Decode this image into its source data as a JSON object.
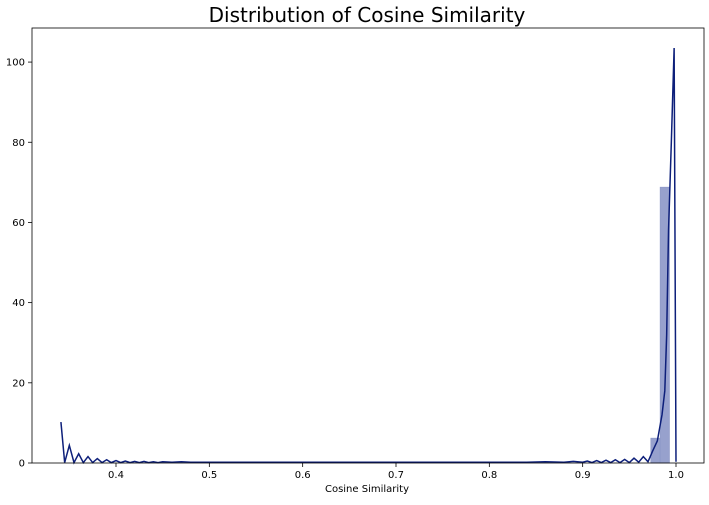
{
  "chart_data": {
    "type": "histogram",
    "title": "Distribution of Cosine Similarity",
    "xlabel": "Cosine Similarity",
    "ylabel": "",
    "xlim": [
      0.31,
      1.03
    ],
    "ylim": [
      0,
      108.5
    ],
    "grid": false,
    "legend": "none",
    "colors": {
      "bar_fill": "#97a1cd",
      "bar_stroke": "#8a95c6",
      "kde_line": "#0d1f7a",
      "axis": "#000000",
      "title": "#000000"
    },
    "x_ticks": [
      0.4,
      0.5,
      0.6,
      0.7,
      0.8,
      0.9,
      1.0
    ],
    "x_tick_labels": [
      "0.4",
      "0.5",
      "0.6",
      "0.7",
      "0.8",
      "0.9",
      "1.0"
    ],
    "y_ticks": [
      0,
      20,
      40,
      60,
      80,
      100
    ],
    "y_tick_labels": [
      "0",
      "20",
      "40",
      "60",
      "80",
      "100"
    ],
    "bins": [
      {
        "x0": 0.973,
        "x1": 0.983,
        "value": 6.2
      },
      {
        "x0": 0.983,
        "x1": 0.993,
        "value": 68.8
      }
    ],
    "kde_line": {
      "x": [
        0.341,
        0.345,
        0.35,
        0.355,
        0.36,
        0.365,
        0.37,
        0.375,
        0.38,
        0.385,
        0.39,
        0.395,
        0.4,
        0.405,
        0.41,
        0.415,
        0.42,
        0.425,
        0.43,
        0.435,
        0.44,
        0.445,
        0.45,
        0.46,
        0.47,
        0.48,
        0.49,
        0.5,
        0.52,
        0.54,
        0.56,
        0.58,
        0.6,
        0.65,
        0.7,
        0.75,
        0.8,
        0.82,
        0.84,
        0.86,
        0.88,
        0.89,
        0.9,
        0.905,
        0.91,
        0.915,
        0.92,
        0.925,
        0.93,
        0.935,
        0.94,
        0.945,
        0.95,
        0.955,
        0.96,
        0.965,
        0.97,
        0.975,
        0.98,
        0.985,
        0.988,
        0.99,
        0.992,
        0.995,
        0.998,
        1.0
      ],
      "y": [
        10.2,
        0.1,
        4.4,
        0.1,
        2.3,
        0.1,
        1.6,
        0.1,
        1.1,
        0.1,
        0.8,
        0.1,
        0.6,
        0.1,
        0.5,
        0.1,
        0.4,
        0.1,
        0.4,
        0.1,
        0.3,
        0.1,
        0.3,
        0.2,
        0.3,
        0.2,
        0.2,
        0.2,
        0.2,
        0.2,
        0.2,
        0.2,
        0.2,
        0.2,
        0.2,
        0.2,
        0.2,
        0.2,
        0.2,
        0.3,
        0.2,
        0.4,
        0.2,
        0.5,
        0.1,
        0.6,
        0.1,
        0.7,
        0.1,
        0.8,
        0.1,
        0.9,
        0.1,
        1.2,
        0.2,
        1.6,
        0.3,
        3.0,
        5.5,
        12.0,
        18.0,
        32.0,
        58.0,
        80.0,
        103.5,
        0.3
      ]
    }
  }
}
